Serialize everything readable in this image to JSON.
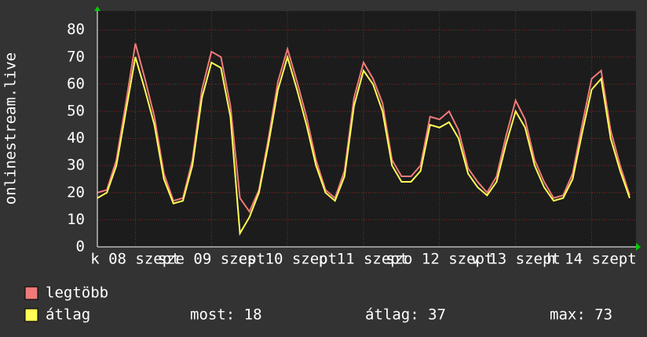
{
  "chart_data": {
    "type": "line",
    "y_label": "onlinestream.live",
    "x": [
      0,
      3,
      6,
      9,
      12,
      15,
      18,
      21,
      24,
      27,
      30,
      33,
      36,
      39,
      42,
      45,
      48,
      51,
      54,
      57,
      60,
      63,
      66,
      69,
      72,
      75,
      78,
      81,
      84,
      87,
      90,
      93,
      96,
      99,
      102,
      105,
      108,
      111,
      114,
      117,
      120,
      123,
      126,
      129,
      132,
      135,
      138,
      141,
      144,
      147,
      150,
      153,
      156,
      159,
      162,
      165,
      168
    ],
    "xlim": [
      0,
      170
    ],
    "xticks": [
      {
        "value": 12,
        "label": "k 08 szept"
      },
      {
        "value": 36,
        "label": "sze 09 szept"
      },
      {
        "value": 60,
        "label": "cs 10 szept"
      },
      {
        "value": 84,
        "label": "p 11 szept"
      },
      {
        "value": 108,
        "label": "szo 12 szept"
      },
      {
        "value": 132,
        "label": "v 13 szept"
      },
      {
        "value": 156,
        "label": "h 14 szept"
      }
    ],
    "ylim": [
      0,
      87
    ],
    "yticks": [
      0,
      10,
      20,
      30,
      40,
      50,
      60,
      70,
      80
    ],
    "grid": true,
    "series": [
      {
        "name": "legtöbb",
        "color": "#f07a7a",
        "values": [
          20,
          21,
          32,
          53,
          75,
          62,
          48,
          27,
          17,
          18,
          32,
          58,
          72,
          70,
          52,
          18,
          13,
          21,
          40,
          61,
          73,
          61,
          48,
          32,
          21,
          18,
          28,
          55,
          68,
          62,
          53,
          32,
          26,
          26,
          30,
          48,
          47,
          50,
          43,
          29,
          24,
          20,
          26,
          41,
          54,
          47,
          32,
          24,
          18,
          19,
          27,
          45,
          62,
          65,
          43,
          30,
          19
        ]
      },
      {
        "name": "átlag",
        "color": "#ffff55",
        "values": [
          18,
          20,
          30,
          50,
          70,
          58,
          45,
          25,
          16,
          17,
          30,
          55,
          68,
          66,
          48,
          5,
          11,
          20,
          38,
          58,
          70,
          58,
          45,
          30,
          20,
          17,
          26,
          52,
          65,
          60,
          50,
          30,
          24,
          24,
          28,
          45,
          44,
          46,
          40,
          27,
          22,
          19,
          24,
          38,
          50,
          44,
          30,
          22,
          17,
          18,
          25,
          42,
          58,
          62,
          40,
          28,
          18
        ]
      }
    ],
    "stats": [
      "most: 18",
      "átlag: 37",
      "max: 73"
    ]
  }
}
